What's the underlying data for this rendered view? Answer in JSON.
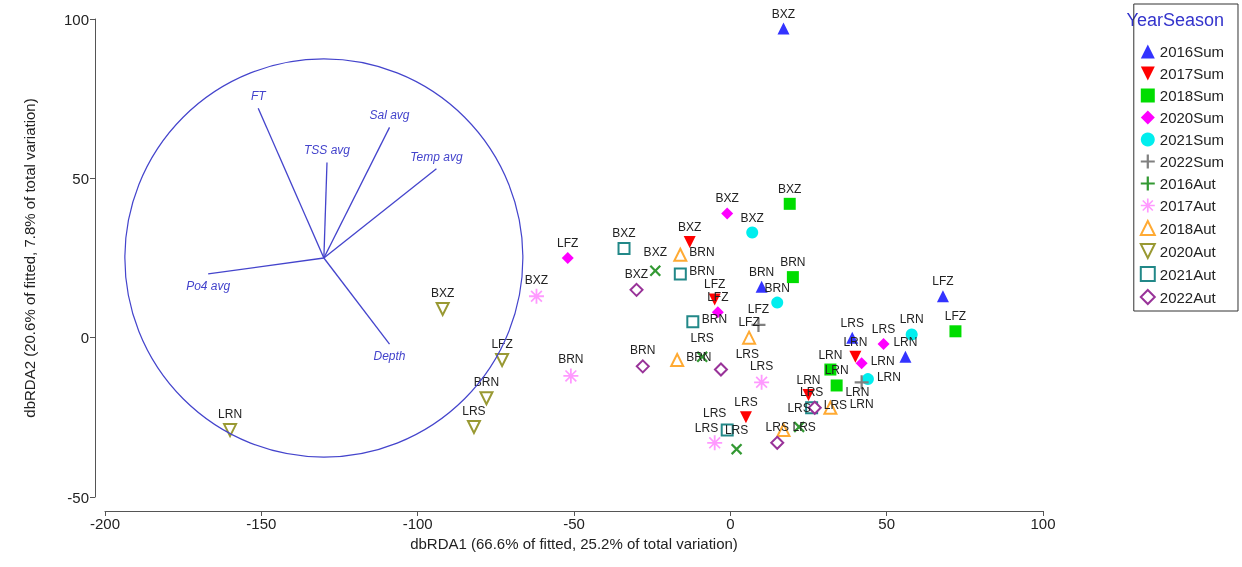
{
  "chart_data": {
    "type": "scatter",
    "xlabel": "dbRDA1 (66.6% of fitted, 25.2% of total variation)",
    "ylabel": "dbRDA2 (20.6% of fitted, 7.8% of total variation)",
    "legend_title": "YearSeason",
    "legend": "right",
    "grid": false,
    "xlim": [
      -200,
      100
    ],
    "xticks": [
      -200,
      -150,
      -100,
      -50,
      0,
      50,
      100
    ],
    "ylim": [
      -50,
      100
    ],
    "yticks": [
      -50,
      0,
      50,
      100
    ],
    "series": [
      {
        "name": "2016Sum",
        "color": "#3333ff",
        "marker": "triangle",
        "x": [
          17,
          68,
          56,
          10,
          39
        ],
        "values": [
          97,
          13,
          -6,
          16,
          0
        ],
        "value_labels": [
          "BXZ",
          "LFZ",
          "LRN",
          "BRN",
          "LRS"
        ]
      },
      {
        "name": "2017Sum",
        "color": "#ff0000",
        "marker": "triangle-down",
        "x": [
          -13,
          -5,
          40,
          25,
          5
        ],
        "values": [
          30,
          12,
          -6,
          -18,
          -25
        ],
        "value_labels": [
          "BXZ",
          "LFZ",
          "LRN",
          "LRN",
          "LRS"
        ]
      },
      {
        "name": "2018Sum",
        "color": "#00dd00",
        "marker": "square",
        "x": [
          19,
          72,
          20,
          32,
          34
        ],
        "values": [
          42,
          2,
          19,
          -10,
          -15
        ],
        "value_labels": [
          "BXZ",
          "LFZ",
          "BRN",
          "LRN",
          "LRN"
        ]
      },
      {
        "name": "2020Sum",
        "color": "#ff00ff",
        "marker": "diamond",
        "x": [
          -1,
          -52,
          -4,
          49,
          42
        ],
        "values": [
          39,
          25,
          8,
          -2,
          -8
        ],
        "value_labels": [
          "BXZ",
          "LFZ",
          "LFZ",
          "LRS",
          "LRN"
        ]
      },
      {
        "name": "2021Sum",
        "color": "#00eeee",
        "marker": "circle",
        "x": [
          7,
          15,
          44,
          58
        ],
        "values": [
          33,
          11,
          -13,
          1
        ],
        "value_labels": [
          "BXZ",
          "BRN",
          "LRN",
          "LRN"
        ]
      },
      {
        "name": "2022Sum",
        "color": "#808080",
        "marker": "plus",
        "x": [
          9,
          42
        ],
        "values": [
          4,
          -14
        ],
        "value_labels": [
          "LFZ",
          "LRN"
        ]
      },
      {
        "name": "2016Aut",
        "color": "#339933",
        "marker": "x",
        "x": [
          -24,
          -9,
          2,
          22
        ],
        "values": [
          21,
          -6,
          -35,
          -28
        ],
        "value_labels": [
          "BXZ",
          "LRS",
          "LRS",
          "LRS"
        ]
      },
      {
        "name": "2017Aut",
        "color": "#ff99ff",
        "marker": "asterisk",
        "x": [
          -62,
          -51,
          -5,
          10
        ],
        "values": [
          13,
          -12,
          -33,
          -14
        ],
        "value_labels": [
          "BXZ",
          "BRN",
          "LRS",
          "LRS"
        ]
      },
      {
        "name": "2018Aut",
        "color": "#ffaa33",
        "marker": "triangle-open",
        "x": [
          -17,
          6,
          -16,
          32,
          17
        ],
        "values": [
          -7,
          0,
          26,
          -22,
          -29
        ],
        "value_labels": [
          "BRN",
          "LFZ",
          "BRN",
          "LRN",
          "LRS"
        ]
      },
      {
        "name": "2020Aut",
        "color": "#999933",
        "marker": "triangle-down-open",
        "x": [
          -92,
          -73,
          -82,
          -78,
          -160
        ],
        "values": [
          9,
          -7,
          -28,
          -19,
          -29
        ],
        "value_labels": [
          "BXZ",
          "LFZ",
          "LRS",
          "BRN",
          "LRN"
        ]
      },
      {
        "name": "2021Aut",
        "color": "#228888",
        "marker": "square-open",
        "x": [
          -34,
          -16,
          -12,
          -1,
          26
        ],
        "values": [
          28,
          20,
          5,
          -29,
          -22
        ],
        "value_labels": [
          "BXZ",
          "BRN",
          "BRN",
          "LRS",
          "LRS"
        ]
      },
      {
        "name": "2022Aut",
        "color": "#993399",
        "marker": "diamond-open",
        "x": [
          -30,
          -28,
          -3,
          15,
          27
        ],
        "values": [
          15,
          -9,
          -10,
          -33,
          -22
        ],
        "value_labels": [
          "BXZ",
          "BRN",
          "LRS",
          "LRS",
          "LRS"
        ]
      },
      {
        "type": "line",
        "name": "FT",
        "color": "#4444cc",
        "x": [
          -130,
          -151
        ],
        "values": [
          25,
          72
        ]
      },
      {
        "type": "line",
        "name": "TSS avg",
        "color": "#4444cc",
        "x": [
          -130,
          -129
        ],
        "values": [
          25,
          55
        ]
      },
      {
        "type": "line",
        "name": "Sal avg",
        "color": "#4444cc",
        "x": [
          -130,
          -109
        ],
        "values": [
          25,
          66
        ]
      },
      {
        "type": "line",
        "name": "Temp avg",
        "color": "#4444cc",
        "x": [
          -130,
          -94
        ],
        "values": [
          25,
          53
        ]
      },
      {
        "type": "line",
        "name": "Po4 avg",
        "color": "#4444cc",
        "x": [
          -130,
          -167
        ],
        "values": [
          25,
          20
        ]
      },
      {
        "type": "line",
        "name": "Depth",
        "color": "#4444cc",
        "x": [
          -130,
          -109
        ],
        "values": [
          25,
          -2
        ]
      }
    ]
  }
}
